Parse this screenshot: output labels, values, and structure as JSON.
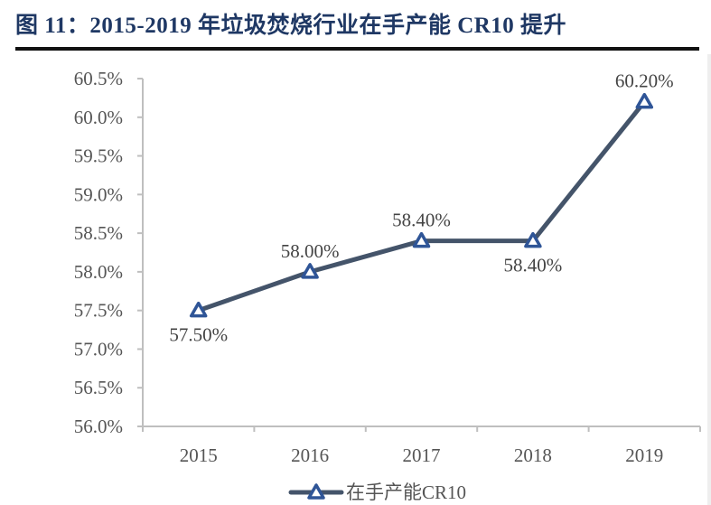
{
  "title": "图 11：2015-2019 年垃圾焚烧行业在手产能 CR10 提升",
  "chart_data": {
    "type": "line",
    "title": "图 11：2015-2019 年垃圾焚烧行业在手产能 CR10 提升",
    "xlabel": "",
    "ylabel": "",
    "categories": [
      "2015",
      "2016",
      "2017",
      "2018",
      "2019"
    ],
    "series": [
      {
        "name": "在手产能CR10",
        "values": [
          57.5,
          58.0,
          58.4,
          58.4,
          60.2
        ],
        "data_labels": [
          "57.50%",
          "58.00%",
          "58.40%",
          "58.40%",
          "60.20%"
        ],
        "label_positions": [
          "below",
          "above",
          "above",
          "below",
          "above"
        ],
        "color": "#44546a",
        "marker": "triangle",
        "marker_color": "#2f5597"
      }
    ],
    "ylim": [
      56.0,
      60.5
    ],
    "yticks": [
      56.0,
      56.5,
      57.0,
      57.5,
      58.0,
      58.5,
      59.0,
      59.5,
      60.0,
      60.5
    ],
    "ytick_labels": [
      "56.0%",
      "56.5%",
      "57.0%",
      "57.5%",
      "58.0%",
      "58.5%",
      "59.0%",
      "59.5%",
      "60.0%",
      "60.5%"
    ],
    "grid": false,
    "legend": {
      "position": "bottom",
      "entries": [
        "在手产能CR10"
      ]
    }
  }
}
